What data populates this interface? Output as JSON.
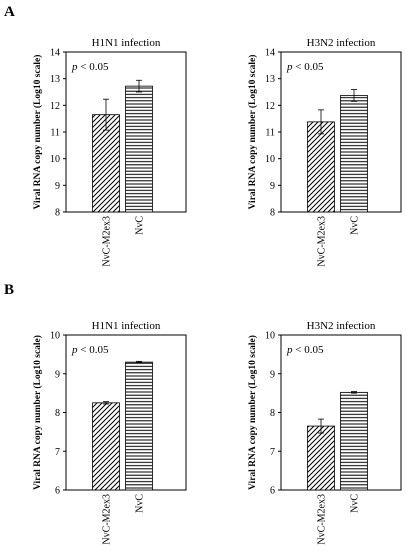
{
  "figure": {
    "panels": [
      {
        "label": "A"
      },
      {
        "label": "B"
      }
    ]
  },
  "colors": {
    "axis": "#000000",
    "bar_fill": "#ffffff",
    "hatch": "#000000",
    "background": "#ffffff"
  },
  "chart_data": [
    {
      "type": "bar",
      "panel": "A",
      "title": "H1N1 infection",
      "ylabel": "Viral RNA copy number (Log10 scale)",
      "annotation": {
        "italic": "p",
        "rest": " < 0.05"
      },
      "ylim": [
        8,
        14
      ],
      "yticks": [
        "8",
        "9",
        "10",
        "11",
        "12",
        "13",
        "14"
      ],
      "categories": [
        "NvC-M2ex3",
        "NvC"
      ],
      "values": [
        11.65,
        12.72
      ],
      "errors": [
        0.58,
        0.22
      ],
      "patterns": [
        "diagonal",
        "horizontal"
      ],
      "grid": false
    },
    {
      "type": "bar",
      "panel": "A",
      "title": "H3N2 infection",
      "ylabel": "Viral RNA copy number (Log10 scale)",
      "annotation": {
        "italic": "p",
        "rest": " < 0.05"
      },
      "ylim": [
        8,
        14
      ],
      "yticks": [
        "8",
        "9",
        "10",
        "11",
        "12",
        "13",
        "14"
      ],
      "categories": [
        "NvC-M2ex3",
        "NvC"
      ],
      "values": [
        11.38,
        12.37
      ],
      "errors": [
        0.45,
        0.22
      ],
      "patterns": [
        "diagonal",
        "horizontal"
      ],
      "grid": false
    },
    {
      "type": "bar",
      "panel": "B",
      "title": "H1N1 infection",
      "ylabel": "Viral RNA copy number (Log10 scale)",
      "annotation": {
        "italic": "p",
        "rest": " < 0.05"
      },
      "ylim": [
        6,
        10
      ],
      "yticks": [
        "6",
        "7",
        "8",
        "9",
        "10"
      ],
      "categories": [
        "NvC-M2ex3",
        "NvC"
      ],
      "values": [
        8.25,
        9.3
      ],
      "errors": [
        0.03,
        0.02
      ],
      "patterns": [
        "diagonal",
        "horizontal"
      ],
      "grid": false
    },
    {
      "type": "bar",
      "panel": "B",
      "title": "H3N2 infection",
      "ylabel": "Viral RNA copy number (Log10 scale)",
      "annotation": {
        "italic": "p",
        "rest": " < 0.05"
      },
      "ylim": [
        6,
        10
      ],
      "yticks": [
        "6",
        "7",
        "8",
        "9",
        "10"
      ],
      "categories": [
        "NvC-M2ex3",
        "NvC"
      ],
      "values": [
        7.65,
        8.52
      ],
      "errors": [
        0.18,
        0.02
      ],
      "patterns": [
        "diagonal",
        "horizontal"
      ],
      "grid": false
    }
  ]
}
